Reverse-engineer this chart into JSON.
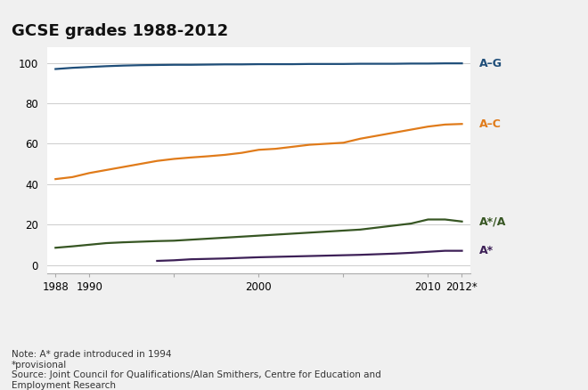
{
  "title": "GCSE grades 1988-2012",
  "title_fontsize": 13,
  "note_line1": "Note: A* grade introduced in 1994",
  "note_line2": "*provisional",
  "note_line3": "Source: Joint Council for Qualifications/Alan Smithers, Centre for Education and\nEmployment Research",
  "years": [
    1988,
    1989,
    1990,
    1991,
    1992,
    1993,
    1994,
    1995,
    1996,
    1997,
    1998,
    1999,
    2000,
    2001,
    2002,
    2003,
    2004,
    2005,
    2006,
    2007,
    2008,
    2009,
    2010,
    2011,
    2012
  ],
  "AG": [
    97.0,
    97.6,
    98.0,
    98.4,
    98.7,
    98.9,
    99.0,
    99.1,
    99.1,
    99.2,
    99.3,
    99.3,
    99.4,
    99.4,
    99.4,
    99.5,
    99.5,
    99.5,
    99.6,
    99.6,
    99.6,
    99.7,
    99.7,
    99.8,
    99.8
  ],
  "AC": [
    42.5,
    43.5,
    45.5,
    47.0,
    48.5,
    50.0,
    51.5,
    52.5,
    53.2,
    53.8,
    54.5,
    55.5,
    57.0,
    57.5,
    58.5,
    59.5,
    60.0,
    60.5,
    62.5,
    64.0,
    65.5,
    67.0,
    68.5,
    69.5,
    69.8
  ],
  "AstarA": [
    8.5,
    9.2,
    10.0,
    10.8,
    11.2,
    11.5,
    11.8,
    12.0,
    12.5,
    13.0,
    13.5,
    14.0,
    14.5,
    15.0,
    15.5,
    16.0,
    16.5,
    17.0,
    17.5,
    18.5,
    19.5,
    20.5,
    22.5,
    22.5,
    21.5
  ],
  "Astar": [
    null,
    null,
    null,
    null,
    null,
    null,
    2.0,
    2.3,
    2.8,
    3.0,
    3.2,
    3.5,
    3.8,
    4.0,
    4.2,
    4.4,
    4.6,
    4.8,
    5.0,
    5.3,
    5.6,
    6.0,
    6.5,
    7.0,
    7.0
  ],
  "color_AG": "#1f4e79",
  "color_AC": "#e07b1a",
  "color_AstarA": "#375623",
  "color_Astar": "#3d2057",
  "label_AG": "A–G",
  "label_AC": "A–C",
  "label_AstarA": "A*/A",
  "label_Astar": "A*",
  "ylim": [
    -4,
    108
  ],
  "yticks": [
    0,
    20,
    40,
    60,
    80,
    100
  ],
  "xtick_positions": [
    1988,
    1990,
    1995,
    2000,
    2005,
    2010,
    2012
  ],
  "xticklabels": [
    "1988",
    "1990",
    "",
    "2000",
    "",
    "2010",
    "2012*"
  ],
  "background_color": "#f0f0f0",
  "plot_bg_color": "#ffffff",
  "grid_color": "#cccccc",
  "linewidth": 1.6
}
